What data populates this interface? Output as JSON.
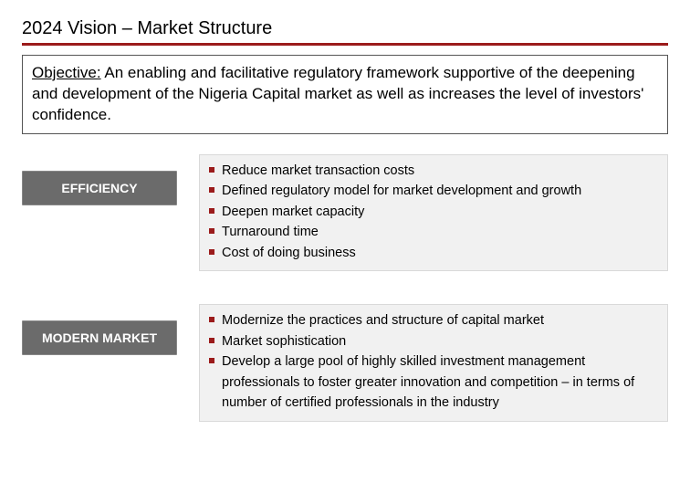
{
  "title": "2024 Vision – Market Structure",
  "objective": {
    "label": "Objective:",
    "text": " An enabling and facilitative regulatory framework supportive of the deepening and  development of the Nigeria Capital market as well as increases the level of investors' confidence."
  },
  "sections": [
    {
      "pillar": "EFFICIENCY",
      "items": [
        "Reduce market transaction costs",
        "Defined regulatory model for market development and growth",
        "Deepen market capacity",
        "Turnaround time",
        "Cost of doing business"
      ]
    },
    {
      "pillar": "MODERN MARKET",
      "items": [
        "Modernize the practices and structure of capital market",
        "Market sophistication",
        "Develop a large pool of highly skilled investment management professionals to foster greater innovation and competition –  in terms of number of certified professionals in the industry"
      ]
    }
  ],
  "colors": {
    "accent": "#9b1b1b",
    "pillar_bg": "#6b6b6b",
    "pillar_text": "#ffffff",
    "bullets_bg": "#f1f1f1",
    "bullets_border": "#d9d9d9",
    "text": "#000000"
  }
}
